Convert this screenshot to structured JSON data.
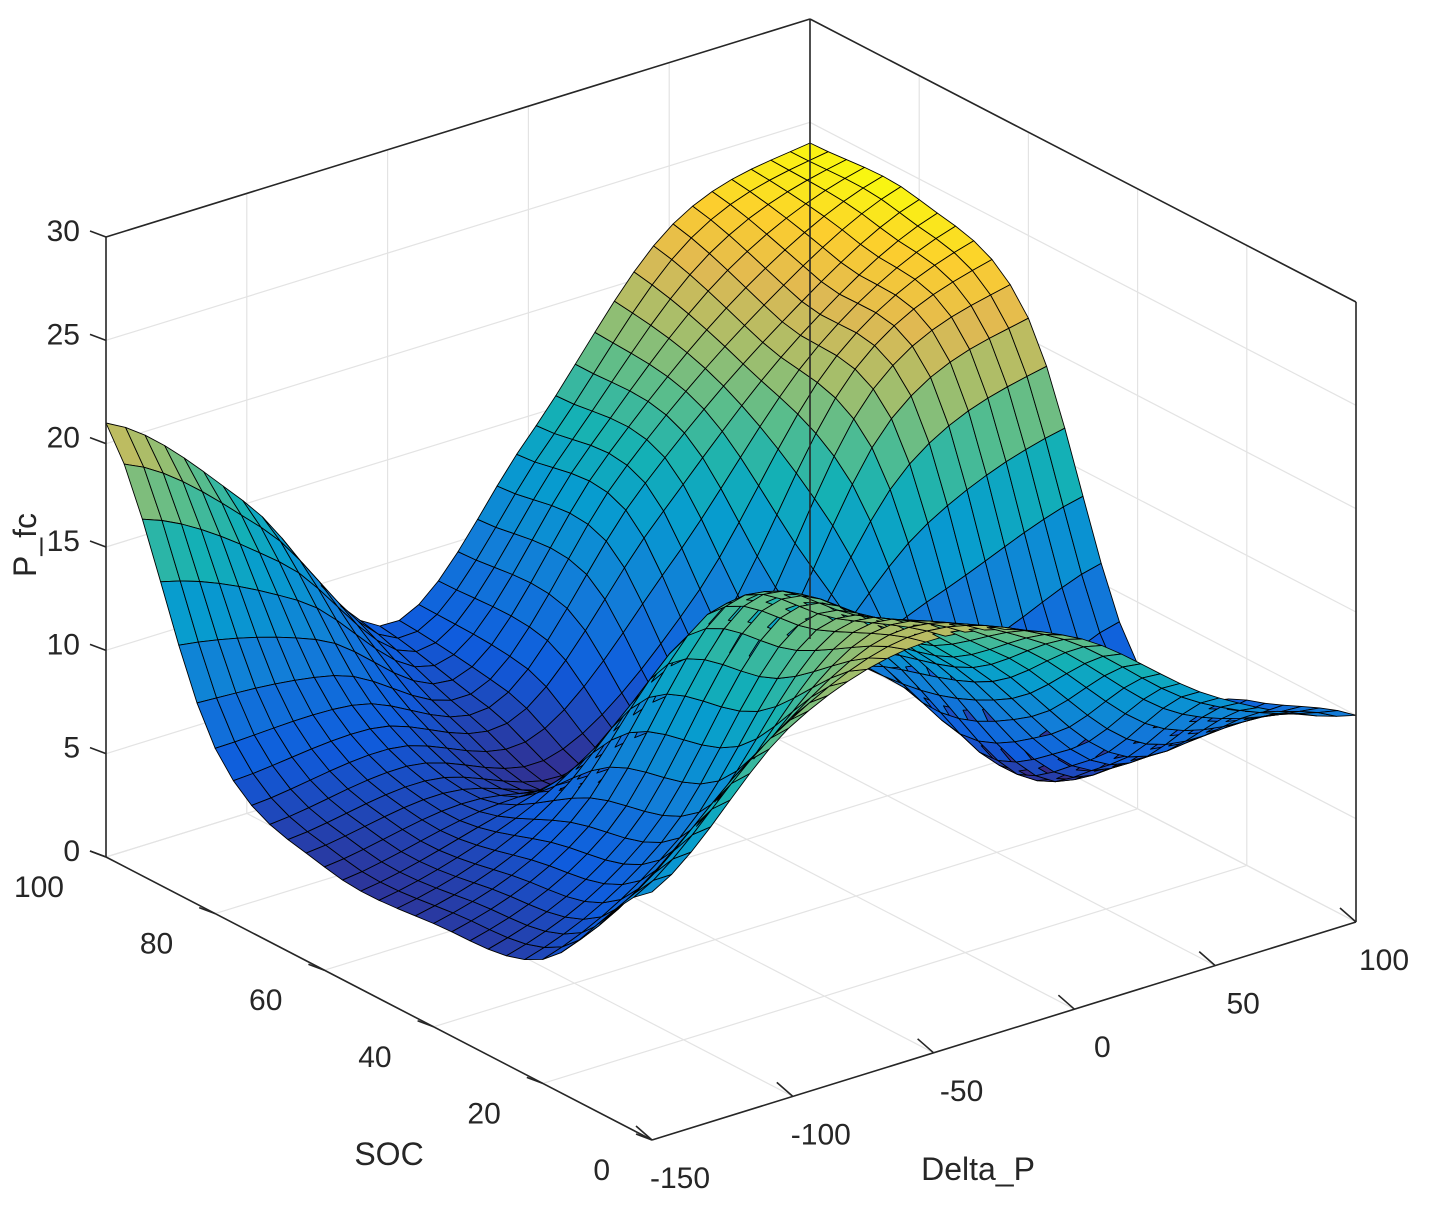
{
  "chart_data": {
    "type": "surface3d",
    "title": "",
    "xlabel": "Delta_P",
    "ylabel": "SOC",
    "zlabel": "P_fc",
    "xlim": [
      -150,
      100
    ],
    "ylim": [
      0,
      100
    ],
    "zlim": [
      0,
      30
    ],
    "xticks": [
      -150,
      -100,
      -50,
      0,
      50,
      100
    ],
    "yticks": [
      0,
      20,
      40,
      60,
      80,
      100
    ],
    "zticks": [
      0,
      5,
      10,
      15,
      20,
      25,
      30
    ],
    "grid": true,
    "colormap": "parula",
    "mesh_edge_color": "#000000",
    "x": [
      -150,
      -100,
      -50,
      0,
      50,
      100
    ],
    "y": [
      0,
      20,
      40,
      60,
      80,
      100
    ],
    "z": [
      [
        12,
        18,
        20,
        18,
        13,
        10
      ],
      [
        6,
        10,
        18,
        14,
        7,
        8
      ],
      [
        5,
        8,
        16,
        12,
        5,
        7
      ],
      [
        5,
        6,
        5,
        7,
        18,
        21
      ],
      [
        8,
        8,
        6,
        14,
        20,
        24
      ],
      [
        21,
        15,
        7,
        14,
        22,
        24
      ]
    ]
  }
}
